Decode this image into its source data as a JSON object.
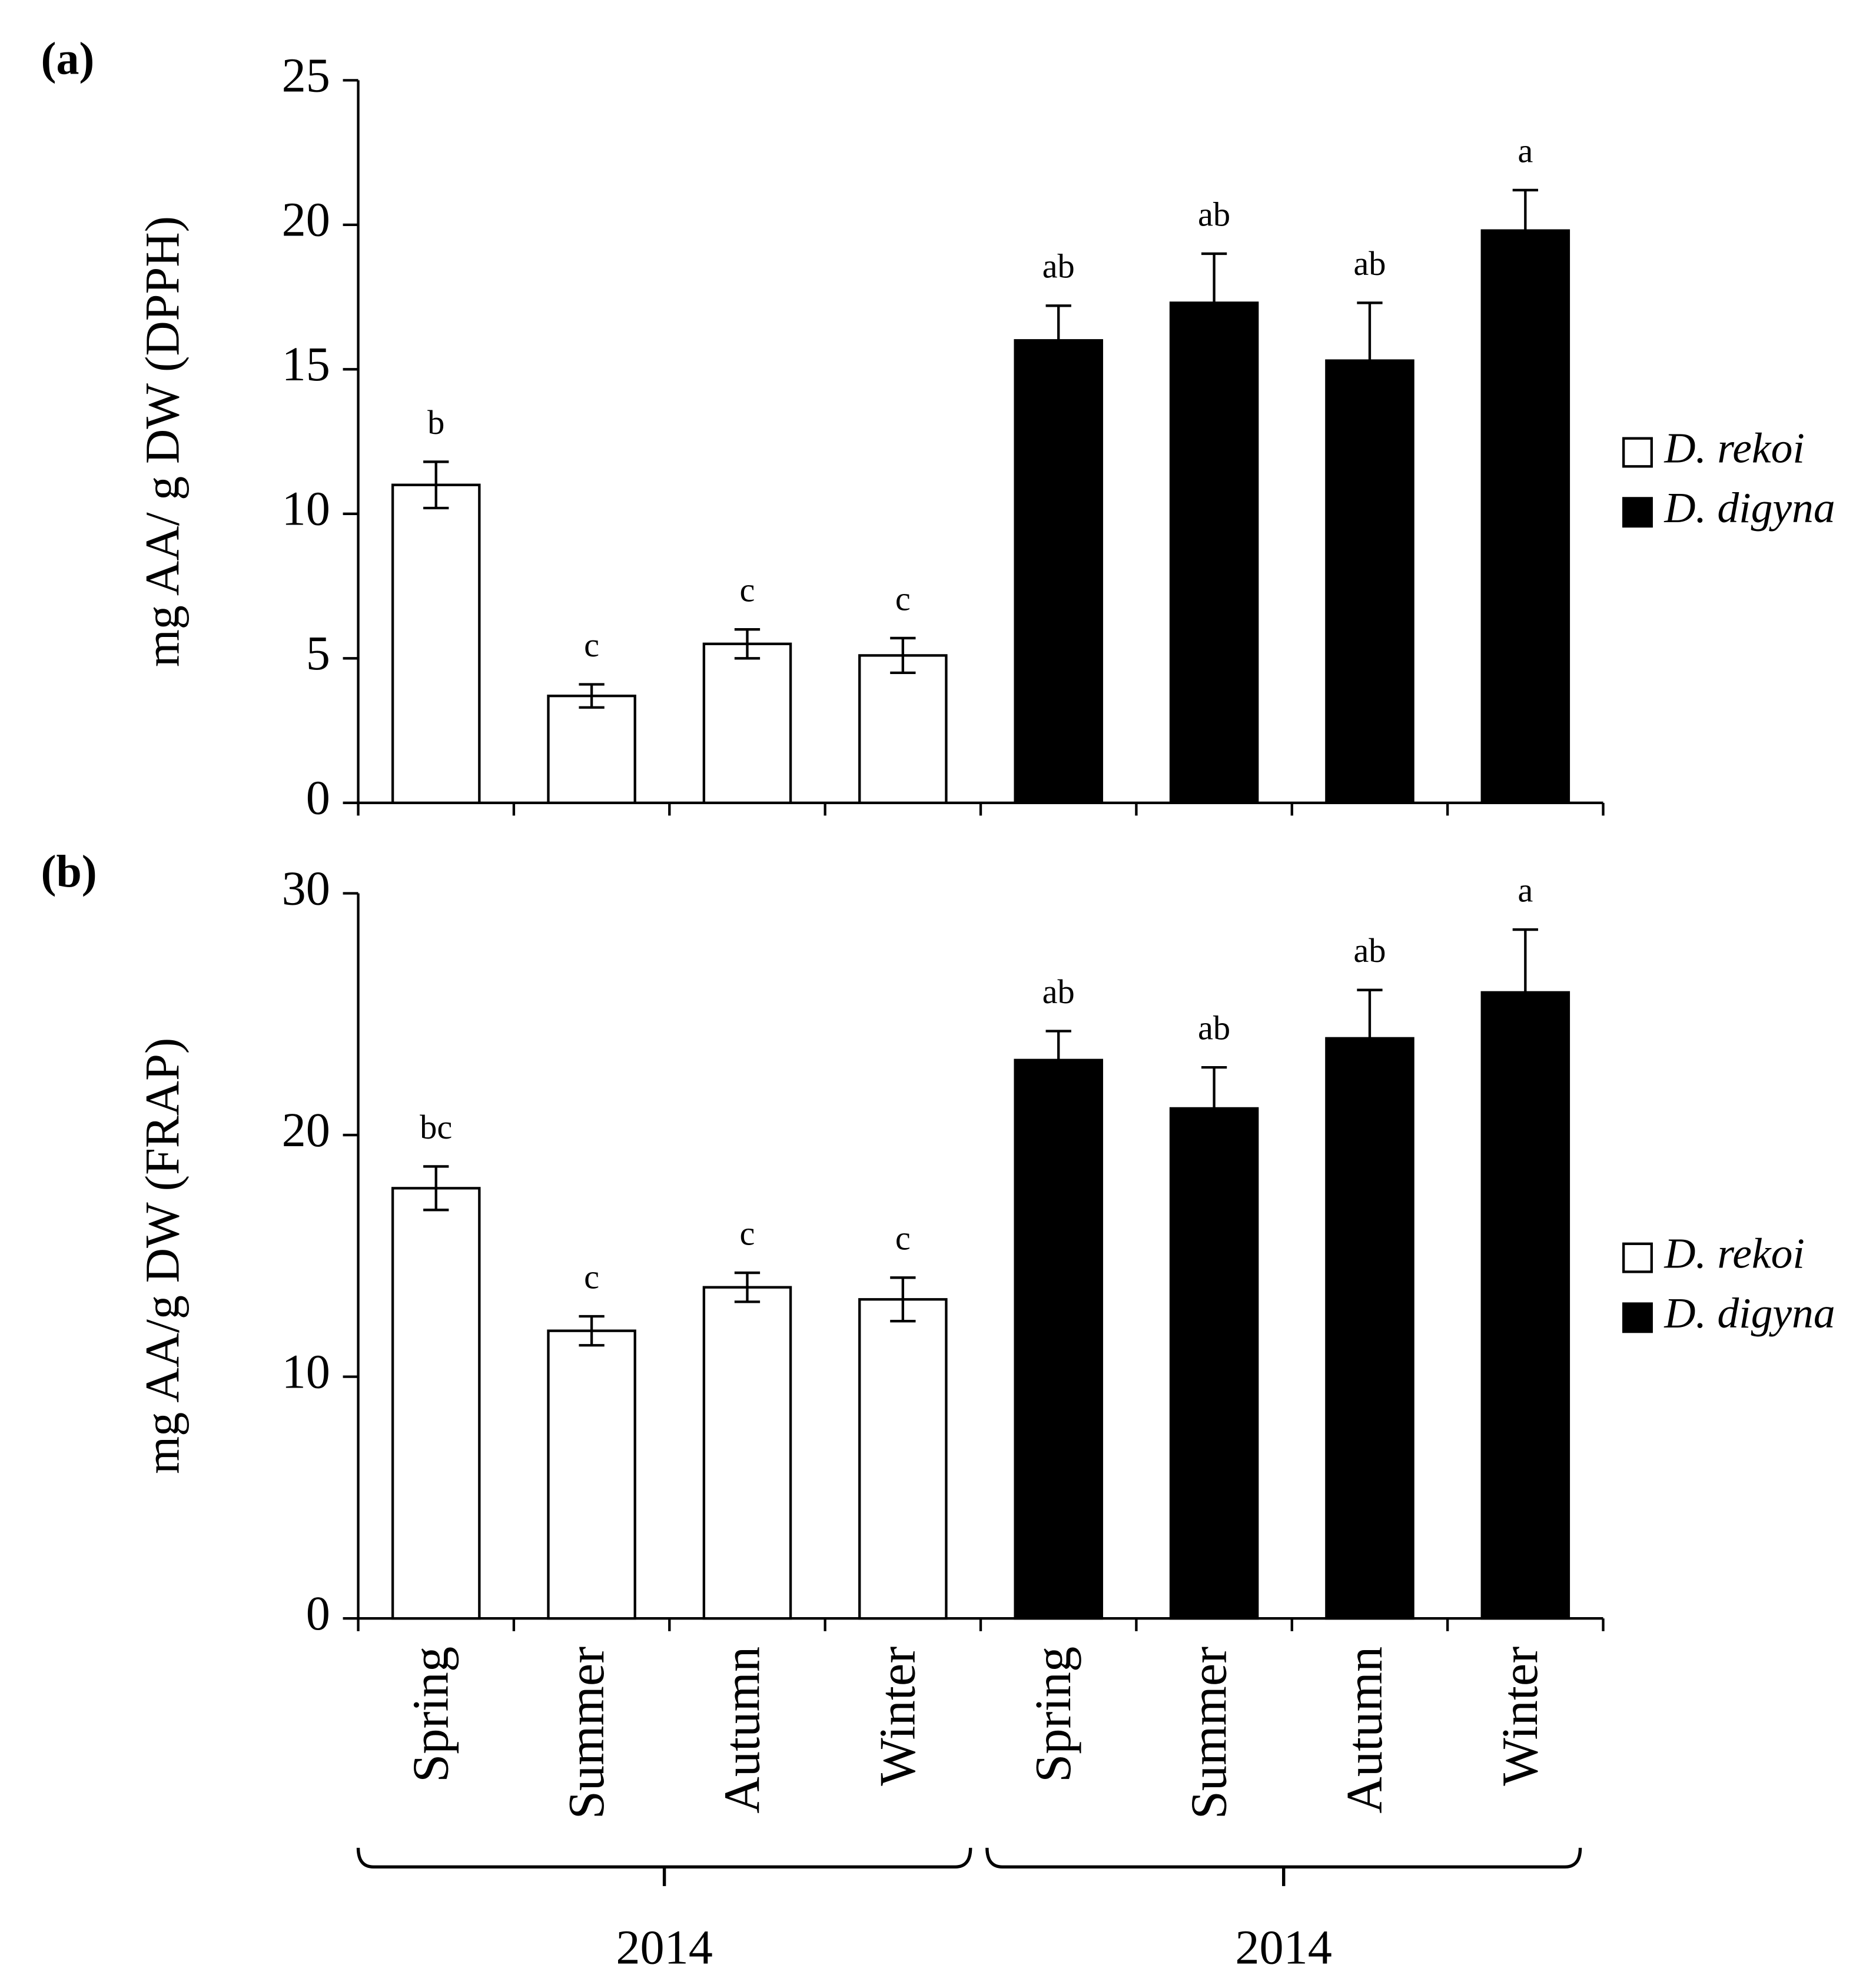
{
  "chart_data": [
    {
      "type": "bar",
      "panel": "(a)",
      "ylabel": "mg AA/ g DW (DPPH)",
      "categories": [
        null,
        null,
        null,
        null,
        null,
        null,
        null,
        null
      ],
      "ylim": [
        0,
        25
      ],
      "yticks": [
        0,
        5,
        10,
        15,
        20,
        25
      ],
      "legend": "right",
      "series": [
        {
          "name": "D. rekoi",
          "color": "#ffffff",
          "values": [
            11.0,
            3.7,
            5.5,
            5.1,
            null,
            null,
            null,
            null
          ],
          "errors": [
            0.8,
            0.4,
            0.5,
            0.6,
            null,
            null,
            null,
            null
          ],
          "annotations": [
            "b",
            "c",
            "c",
            "c",
            null,
            null,
            null,
            null
          ]
        },
        {
          "name": "D. digyna",
          "color": "#000000",
          "values": [
            null,
            null,
            null,
            null,
            16.0,
            17.3,
            15.3,
            19.8
          ],
          "errors": [
            null,
            null,
            null,
            null,
            1.2,
            1.7,
            2.0,
            1.4
          ],
          "annotations": [
            null,
            null,
            null,
            null,
            "ab",
            "ab",
            "ab",
            "a"
          ]
        }
      ]
    },
    {
      "type": "bar",
      "panel": "(b)",
      "ylabel": "mg AA/g DW (FRAP)",
      "categories": [
        "Spring",
        "Summer",
        "Autumn",
        "Winter",
        "Spring",
        "Summer",
        "Autumn",
        "Winter"
      ],
      "group_labels": [
        "2014",
        "2014"
      ],
      "ylim": [
        0,
        30
      ],
      "yticks": [
        0,
        10,
        20,
        30
      ],
      "legend": "right",
      "series": [
        {
          "name": "D. rekoi",
          "color": "#ffffff",
          "values": [
            17.8,
            11.9,
            13.7,
            13.2,
            null,
            null,
            null,
            null
          ],
          "errors": [
            0.9,
            0.6,
            0.6,
            0.9,
            null,
            null,
            null,
            null
          ],
          "annotations": [
            "bc",
            "c",
            "c",
            "c",
            null,
            null,
            null,
            null
          ]
        },
        {
          "name": "D. digyna",
          "color": "#000000",
          "values": [
            null,
            null,
            null,
            null,
            23.1,
            21.1,
            24.0,
            25.9
          ],
          "errors": [
            null,
            null,
            null,
            null,
            1.2,
            1.7,
            2.0,
            2.6
          ],
          "annotations": [
            null,
            null,
            null,
            null,
            "ab",
            "ab",
            "ab",
            "a"
          ]
        }
      ]
    }
  ]
}
